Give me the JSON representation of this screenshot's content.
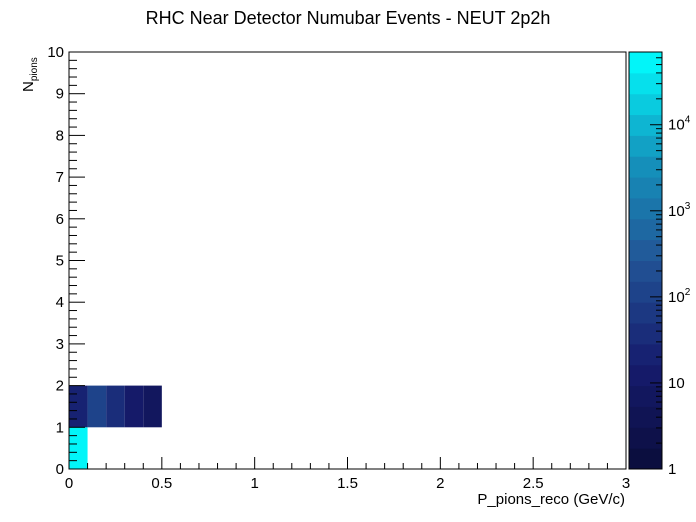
{
  "chart_data": {
    "type": "heatmap",
    "title": "RHC Near Detector Numubar Events - NEUT 2p2h",
    "xlabel": "P_pions_reco (GeV/c)",
    "ylabel_main": "N",
    "ylabel_sub": "pions",
    "xlim": [
      0,
      3
    ],
    "ylim": [
      0,
      10
    ],
    "x_ticks": [
      "0",
      "0.5",
      "1",
      "1.5",
      "2",
      "2.5",
      "3"
    ],
    "y_ticks": [
      "0",
      "1",
      "2",
      "3",
      "4",
      "5",
      "6",
      "7",
      "8",
      "9",
      "10"
    ],
    "colorbar": {
      "scale": "log",
      "range": [
        1,
        70000
      ],
      "tick_labels": [
        {
          "base": "1",
          "exp": ""
        },
        {
          "base": "10",
          "exp": ""
        },
        {
          "base": "10",
          "exp": "2"
        },
        {
          "base": "10",
          "exp": "3"
        },
        {
          "base": "10",
          "exp": "4"
        }
      ]
    },
    "cells": [
      {
        "x": [
          0,
          0.1
        ],
        "y": [
          0,
          1
        ],
        "value": 70000
      },
      {
        "x": [
          0,
          0.1
        ],
        "y": [
          1,
          2
        ],
        "value": 18
      },
      {
        "x": [
          0.1,
          0.2
        ],
        "y": [
          1,
          2
        ],
        "value": 110
      },
      {
        "x": [
          0.2,
          0.3
        ],
        "y": [
          1,
          2
        ],
        "value": 45
      },
      {
        "x": [
          0.3,
          0.4
        ],
        "y": [
          1,
          2
        ],
        "value": 14
      },
      {
        "x": [
          0.4,
          0.5
        ],
        "y": [
          1,
          2
        ],
        "value": 7
      }
    ],
    "grid": false,
    "legend": "none"
  }
}
